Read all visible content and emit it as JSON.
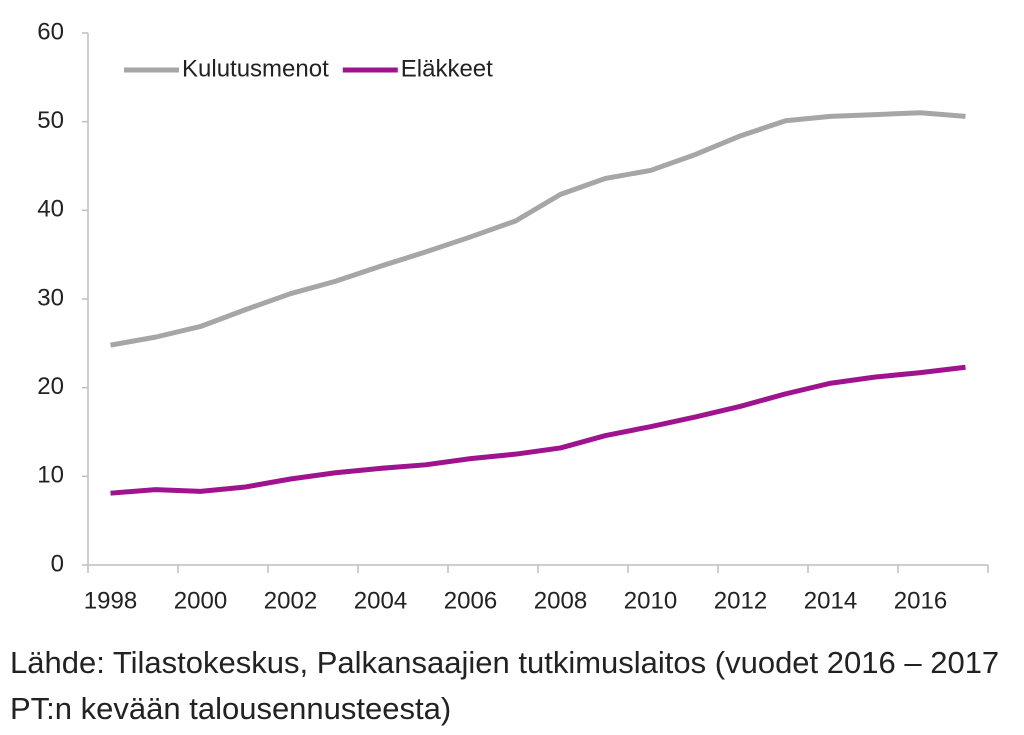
{
  "chart_data": {
    "type": "line",
    "categories": [
      "1998",
      null,
      "2000",
      null,
      "2002",
      null,
      "2004",
      null,
      "2006",
      null,
      "2008",
      null,
      "2010",
      null,
      "2012",
      null,
      "2014",
      null,
      "2016",
      null
    ],
    "series": [
      {
        "name": "Kulutusmenot",
        "color": "#a6a6a6",
        "values": [
          24.8,
          25.7,
          26.9,
          28.8,
          30.6,
          32.0,
          33.7,
          35.3,
          37.0,
          38.8,
          41.8,
          43.6,
          44.5,
          46.3,
          48.4,
          50.1,
          50.6,
          50.8,
          51.0,
          50.6
        ]
      },
      {
        "name": "Eläkkeet",
        "color": "#a0138e",
        "values": [
          8.1,
          8.5,
          8.3,
          8.8,
          9.7,
          10.4,
          10.9,
          11.3,
          12.0,
          12.5,
          13.2,
          14.6,
          15.6,
          16.7,
          17.9,
          19.3,
          20.5,
          21.2,
          21.7,
          22.3
        ]
      }
    ],
    "ylim": [
      0,
      60
    ],
    "yticks": [
      0,
      10,
      20,
      30,
      40,
      50,
      60
    ],
    "grid": false,
    "legend": "top-left",
    "source": "Lähde: Tilastokeskus, Palkansaajien tutkimuslaitos (vuodet 2016 – 2017 PT:n kevään talousennusteesta)"
  }
}
